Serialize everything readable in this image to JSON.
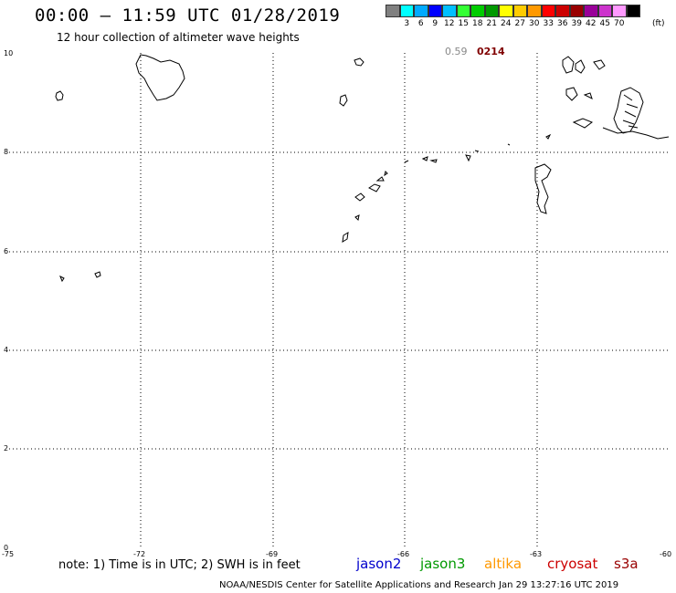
{
  "header": {
    "title": "00:00 – 11:59 UTC 01/28/2019",
    "subtitle": "12 hour collection of altimeter wave heights"
  },
  "scale": {
    "colors": [
      "#808080",
      "#00ffff",
      "#00aaff",
      "#0000ff",
      "#00bfff",
      "#33ff33",
      "#00cc00",
      "#009900",
      "#ffff00",
      "#ffcc00",
      "#ff9900",
      "#ff0000",
      "#cc0000",
      "#990000",
      "#990099",
      "#cc33cc",
      "#ff99ff",
      "#000000"
    ],
    "labels": [
      "",
      "3",
      "6",
      "9",
      "12",
      "15",
      "18",
      "21",
      "24",
      "27",
      "30",
      "33",
      "36",
      "39",
      "42",
      "45",
      "70",
      ""
    ],
    "unit": "(ft)"
  },
  "pass_info": {
    "value": "0.59",
    "time": "0214",
    "time_color": "#800000"
  },
  "axes": {
    "y_ticks": [
      "10",
      "8",
      "6",
      "4",
      "2",
      "0"
    ],
    "x_ticks": [
      "-75",
      "-72",
      "-69",
      "-66",
      "-63",
      "-60"
    ]
  },
  "note": "note:  1) Time is in UTC;  2) SWH is in feet",
  "legend": [
    {
      "name": "jason2",
      "color": "#0000cc"
    },
    {
      "name": "jason3",
      "color": "#009900"
    },
    {
      "name": "altika",
      "color": "#ff9900"
    },
    {
      "name": "cryosat",
      "color": "#cc0000"
    },
    {
      "name": "s3a",
      "color": "#990000"
    }
  ],
  "footer": "NOAA/NESDIS Center for Satellite Applications and Research    Jan 29 13:27:16 UTC 2019"
}
